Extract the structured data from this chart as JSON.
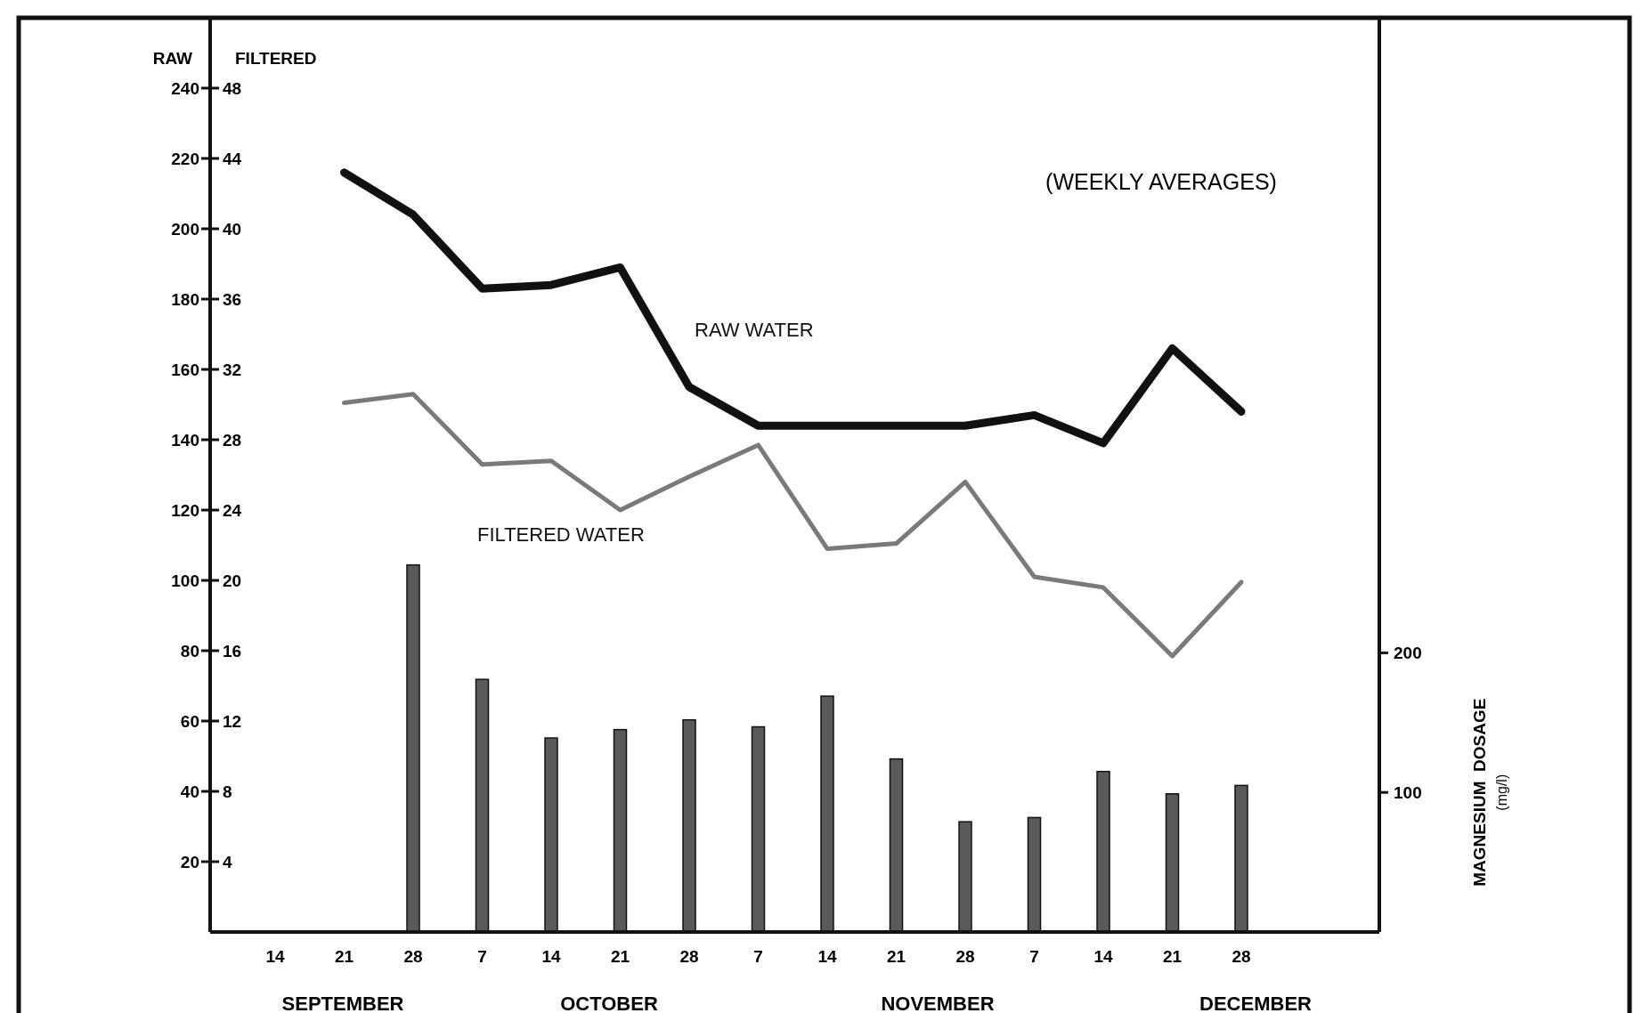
{
  "chart_data": {
    "type": "line",
    "categories": [
      "14",
      "21",
      "28",
      "7",
      "14",
      "21",
      "28",
      "7",
      "14",
      "21",
      "28",
      "7",
      "14",
      "21",
      "28"
    ],
    "series": [
      {
        "name": "RAW WATER",
        "axis": "y",
        "color": "#111111",
        "values": [
          null,
          216,
          204,
          183,
          184,
          189,
          155,
          144,
          144,
          144,
          144,
          147,
          139,
          166,
          148
        ]
      },
      {
        "name": "FILTERED WATER",
        "axis": "y2",
        "color": "#7a7a7a",
        "values": [
          null,
          30.1,
          30.6,
          26.6,
          26.8,
          24.0,
          25.9,
          27.7,
          21.8,
          22.1,
          25.6,
          20.2,
          19.6,
          15.7,
          19.9
        ]
      },
      {
        "type": "bar",
        "axis": "y3",
        "color": "#5a5a5a",
        "values": [
          null,
          null,
          263,
          181,
          139,
          145,
          152,
          147,
          169,
          124,
          79,
          82,
          115,
          99,
          105
        ]
      }
    ],
    "ylabel": "RAW",
    "y2label": "FILTERED",
    "y3label": "MAGNESIUM  DOSAGE\n(mg/l)",
    "ylim": [
      0,
      260
    ],
    "yticks": [
      20,
      40,
      60,
      80,
      100,
      120,
      140,
      160,
      180,
      200,
      220,
      240
    ],
    "y2lim": [
      0,
      52
    ],
    "y2ticks": [
      4,
      8,
      12,
      16,
      20,
      24,
      28,
      32,
      36,
      40,
      44,
      48
    ],
    "y3lim": [
      0,
      655
    ],
    "y3ticks": [
      100,
      200
    ],
    "annotations": [
      "(WEEKLY AVERAGES)",
      "SEPTEMBER",
      "OCTOBER",
      "NOVEMBER",
      "DECEMBER"
    ],
    "grid": false
  }
}
